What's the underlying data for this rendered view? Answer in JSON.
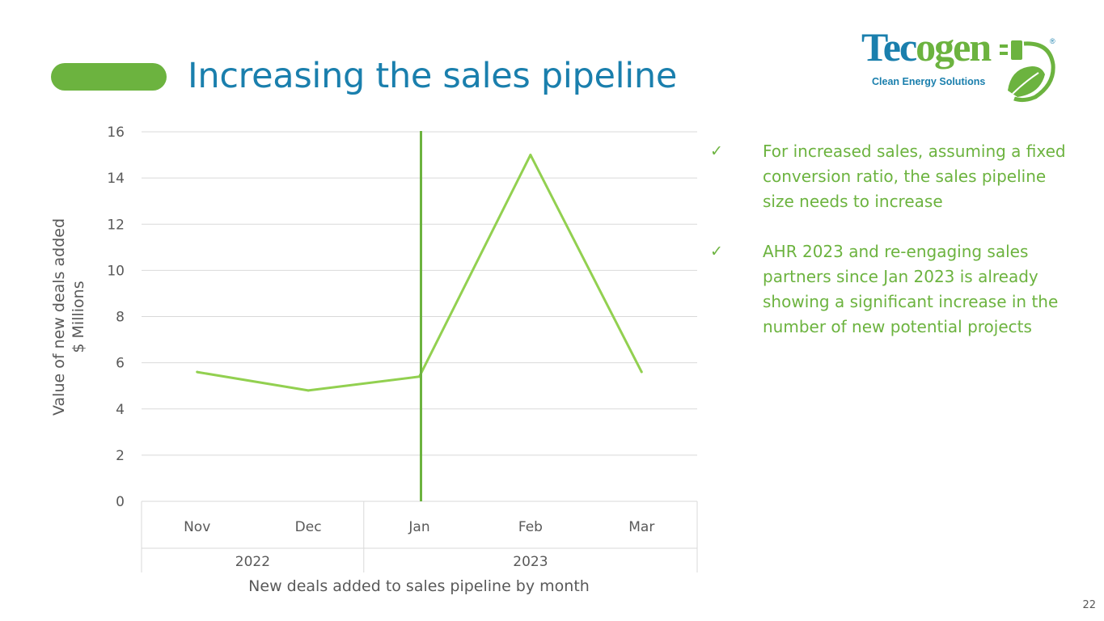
{
  "slide": {
    "title": "Increasing the sales pipeline",
    "page_number": "22",
    "colors": {
      "title": "#1a7fad",
      "accent_green": "#6cb33f",
      "line_green": "#92d050",
      "bullet_green": "#6cb33f",
      "axis_text": "#595959",
      "grid": "#d9d9d9"
    }
  },
  "logo": {
    "wordmark": "Tecogen",
    "tagline": "Clean Energy Solutions",
    "registered": "®",
    "colors": {
      "tec": "#1a7fad",
      "ogen": "#6cb33f",
      "tagline": "#1a7fad"
    },
    "icon": "plug-leaf-icon"
  },
  "bullets": [
    {
      "icon": "checkmark-icon",
      "mark": "✓",
      "text": "For increased sales, assuming a fixed conversion ratio, the sales pipeline size needs to increase"
    },
    {
      "icon": "checkmark-icon",
      "mark": "✓",
      "text": "AHR 2023 and re-engaging sales partners since Jan 2023 is already showing a significant increase in the number of new potential projects"
    }
  ],
  "chart_data": {
    "type": "line",
    "categories": [
      "Nov",
      "Dec",
      "Jan",
      "Feb",
      "Mar"
    ],
    "category_groups": [
      {
        "label": "2022",
        "span": 2
      },
      {
        "label": "2023",
        "span": 3
      }
    ],
    "series": [
      {
        "values": [
          5.6,
          4.8,
          5.4,
          15.0,
          5.6
        ]
      }
    ],
    "marker_line_at": "Jan",
    "ylim": [
      0,
      16
    ],
    "yticks": [
      0,
      2,
      4,
      6,
      8,
      10,
      12,
      14,
      16
    ],
    "ylabel_lines": [
      "Value of new deals added",
      "$ Millions"
    ],
    "xlabel": "New deals added to sales pipeline by month",
    "grid": true,
    "legend": "none"
  }
}
